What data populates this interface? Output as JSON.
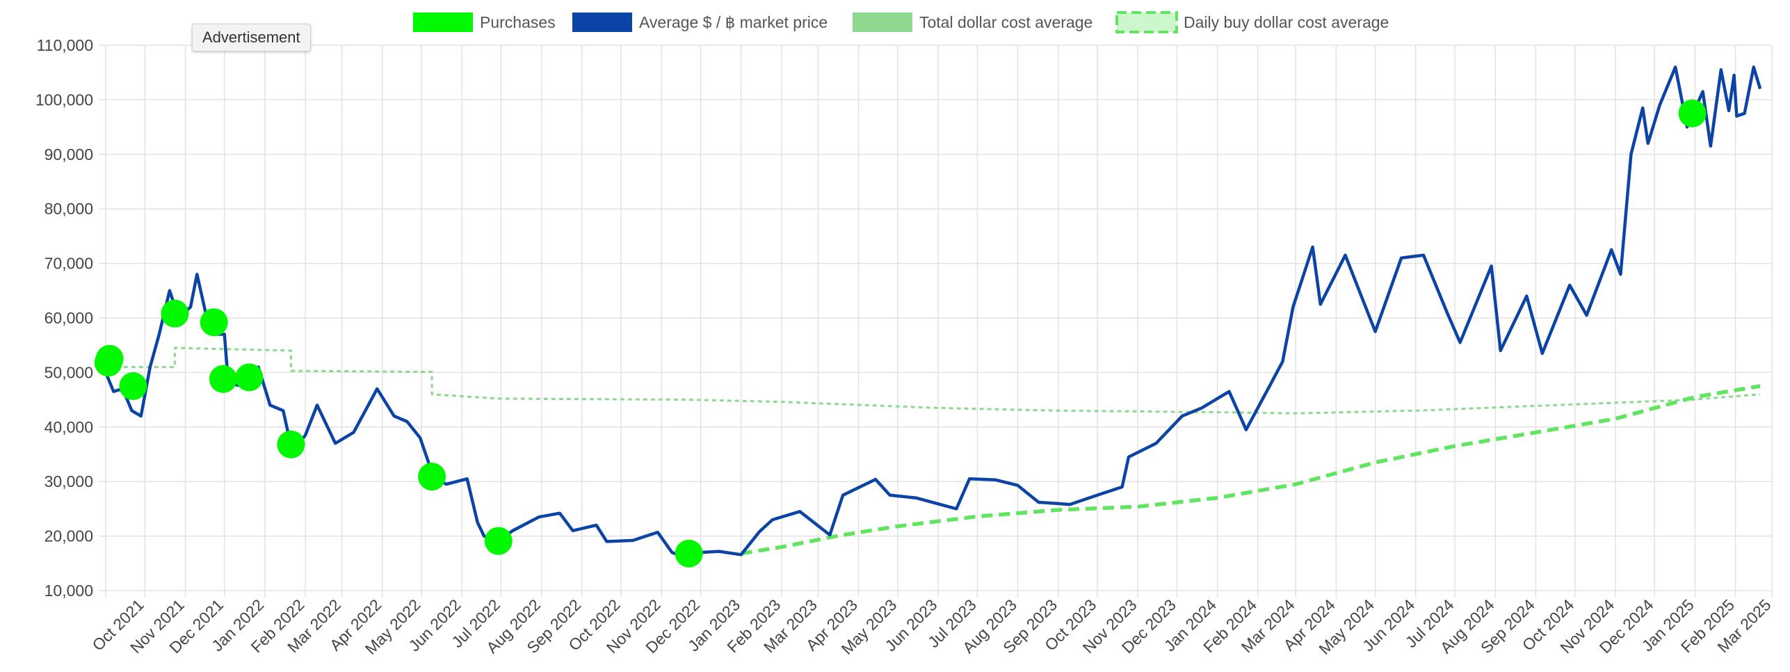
{
  "tooltip": {
    "label": "Advertisement"
  },
  "chart_data": {
    "type": "line",
    "legend_position": "top-center",
    "grid": true,
    "ylim": [
      10000,
      110000
    ],
    "y_ticks": [
      10000,
      20000,
      30000,
      40000,
      50000,
      60000,
      70000,
      80000,
      90000,
      100000,
      110000
    ],
    "y_tick_labels": [
      "10,000",
      "20,000",
      "30,000",
      "40,000",
      "50,000",
      "60,000",
      "70,000",
      "80,000",
      "90,000",
      "100,000",
      "110,000"
    ],
    "x_range": [
      "2021-09-01",
      "2025-03-01"
    ],
    "x_tick_labels": [
      "Oct 2021",
      "Nov 2021",
      "Dec 2021",
      "Jan 2022",
      "Feb 2022",
      "Mar 2022",
      "Apr 2022",
      "May 2022",
      "Jun 2022",
      "Jul 2022",
      "Aug 2022",
      "Sep 2022",
      "Oct 2022",
      "Nov 2022",
      "Dec 2022",
      "Jan 2023",
      "Feb 2023",
      "Mar 2023",
      "Apr 2023",
      "May 2023",
      "Jun 2023",
      "Jul 2023",
      "Aug 2023",
      "Sep 2023",
      "Oct 2023",
      "Nov 2023",
      "Dec 2023",
      "Jan 2024",
      "Feb 2024",
      "Mar 2024",
      "Apr 2024",
      "May 2024",
      "Jun 2024",
      "Jul 2024",
      "Aug 2024",
      "Sep 2024",
      "Oct 2024",
      "Nov 2024",
      "Dec 2024",
      "Jan 2025",
      "Feb 2025",
      "Mar 2025"
    ],
    "series": [
      {
        "name": "Purchases",
        "kind": "points",
        "color": "#00f900",
        "points": [
          {
            "x": "2021-09-04",
            "y": 52500
          },
          {
            "x": "2021-09-03",
            "y": 51800
          },
          {
            "x": "2021-09-22",
            "y": 47500
          },
          {
            "x": "2021-10-24",
            "y": 60800
          },
          {
            "x": "2021-11-23",
            "y": 59200
          },
          {
            "x": "2021-11-30",
            "y": 48800
          },
          {
            "x": "2021-12-20",
            "y": 49100
          },
          {
            "x": "2022-01-21",
            "y": 36800
          },
          {
            "x": "2022-05-09",
            "y": 30900
          },
          {
            "x": "2022-06-29",
            "y": 19100
          },
          {
            "x": "2022-11-22",
            "y": 16800
          },
          {
            "x": "2024-12-30",
            "y": 97500
          }
        ]
      },
      {
        "name": "Average $ / ฿ market price",
        "kind": "line",
        "color": "#0c44a6",
        "points": [
          {
            "x": "2021-09-01",
            "y": 50000
          },
          {
            "x": "2021-09-07",
            "y": 46500
          },
          {
            "x": "2021-09-14",
            "y": 47000
          },
          {
            "x": "2021-09-21",
            "y": 43000
          },
          {
            "x": "2021-09-28",
            "y": 42000
          },
          {
            "x": "2021-10-05",
            "y": 51000
          },
          {
            "x": "2021-10-12",
            "y": 57000
          },
          {
            "x": "2021-10-20",
            "y": 65000
          },
          {
            "x": "2021-10-27",
            "y": 60000
          },
          {
            "x": "2021-11-05",
            "y": 62000
          },
          {
            "x": "2021-11-10",
            "y": 68000
          },
          {
            "x": "2021-11-17",
            "y": 60500
          },
          {
            "x": "2021-11-24",
            "y": 57000
          },
          {
            "x": "2021-12-01",
            "y": 57000
          },
          {
            "x": "2021-12-04",
            "y": 48000
          },
          {
            "x": "2021-12-15",
            "y": 47500
          },
          {
            "x": "2021-12-27",
            "y": 51000
          },
          {
            "x": "2022-01-05",
            "y": 44000
          },
          {
            "x": "2022-01-15",
            "y": 43000
          },
          {
            "x": "2022-01-22",
            "y": 35500
          },
          {
            "x": "2022-02-01",
            "y": 38500
          },
          {
            "x": "2022-02-10",
            "y": 44000
          },
          {
            "x": "2022-02-24",
            "y": 37000
          },
          {
            "x": "2022-03-10",
            "y": 39000
          },
          {
            "x": "2022-03-28",
            "y": 47000
          },
          {
            "x": "2022-04-10",
            "y": 42000
          },
          {
            "x": "2022-04-20",
            "y": 41000
          },
          {
            "x": "2022-04-30",
            "y": 38000
          },
          {
            "x": "2022-05-10",
            "y": 31000
          },
          {
            "x": "2022-05-20",
            "y": 29500
          },
          {
            "x": "2022-06-05",
            "y": 30500
          },
          {
            "x": "2022-06-13",
            "y": 22500
          },
          {
            "x": "2022-06-18",
            "y": 20000
          },
          {
            "x": "2022-07-01",
            "y": 19500
          },
          {
            "x": "2022-07-10",
            "y": 21000
          },
          {
            "x": "2022-07-30",
            "y": 23500
          },
          {
            "x": "2022-08-15",
            "y": 24200
          },
          {
            "x": "2022-08-25",
            "y": 21000
          },
          {
            "x": "2022-09-12",
            "y": 22000
          },
          {
            "x": "2022-09-20",
            "y": 19000
          },
          {
            "x": "2022-10-10",
            "y": 19200
          },
          {
            "x": "2022-10-29",
            "y": 20700
          },
          {
            "x": "2022-11-09",
            "y": 17000
          },
          {
            "x": "2022-11-20",
            "y": 16000
          },
          {
            "x": "2022-12-01",
            "y": 17000
          },
          {
            "x": "2022-12-15",
            "y": 17200
          },
          {
            "x": "2023-01-01",
            "y": 16600
          },
          {
            "x": "2023-01-15",
            "y": 20800
          },
          {
            "x": "2023-01-25",
            "y": 23000
          },
          {
            "x": "2023-02-15",
            "y": 24500
          },
          {
            "x": "2023-03-10",
            "y": 20200
          },
          {
            "x": "2023-03-20",
            "y": 27500
          },
          {
            "x": "2023-04-14",
            "y": 30400
          },
          {
            "x": "2023-04-25",
            "y": 27500
          },
          {
            "x": "2023-05-15",
            "y": 27000
          },
          {
            "x": "2023-06-15",
            "y": 25000
          },
          {
            "x": "2023-06-25",
            "y": 30500
          },
          {
            "x": "2023-07-15",
            "y": 30300
          },
          {
            "x": "2023-08-01",
            "y": 29300
          },
          {
            "x": "2023-08-17",
            "y": 26200
          },
          {
            "x": "2023-09-10",
            "y": 25800
          },
          {
            "x": "2023-10-01",
            "y": 27500
          },
          {
            "x": "2023-10-20",
            "y": 29000
          },
          {
            "x": "2023-10-25",
            "y": 34500
          },
          {
            "x": "2023-11-15",
            "y": 37000
          },
          {
            "x": "2023-12-05",
            "y": 42000
          },
          {
            "x": "2023-12-20",
            "y": 43500
          },
          {
            "x": "2024-01-10",
            "y": 46500
          },
          {
            "x": "2024-01-23",
            "y": 39500
          },
          {
            "x": "2024-02-10",
            "y": 47500
          },
          {
            "x": "2024-02-20",
            "y": 52000
          },
          {
            "x": "2024-02-28",
            "y": 62000
          },
          {
            "x": "2024-03-14",
            "y": 73000
          },
          {
            "x": "2024-03-20",
            "y": 62500
          },
          {
            "x": "2024-04-08",
            "y": 71500
          },
          {
            "x": "2024-05-01",
            "y": 57500
          },
          {
            "x": "2024-05-21",
            "y": 71000
          },
          {
            "x": "2024-06-07",
            "y": 71500
          },
          {
            "x": "2024-06-25",
            "y": 61000
          },
          {
            "x": "2024-07-05",
            "y": 55500
          },
          {
            "x": "2024-07-29",
            "y": 69500
          },
          {
            "x": "2024-08-05",
            "y": 54000
          },
          {
            "x": "2024-08-25",
            "y": 64000
          },
          {
            "x": "2024-09-06",
            "y": 53500
          },
          {
            "x": "2024-09-27",
            "y": 66000
          },
          {
            "x": "2024-10-10",
            "y": 60500
          },
          {
            "x": "2024-10-29",
            "y": 72500
          },
          {
            "x": "2024-11-05",
            "y": 68000
          },
          {
            "x": "2024-11-13",
            "y": 90000
          },
          {
            "x": "2024-11-22",
            "y": 98500
          },
          {
            "x": "2024-11-26",
            "y": 92000
          },
          {
            "x": "2024-12-05",
            "y": 99000
          },
          {
            "x": "2024-12-17",
            "y": 106000
          },
          {
            "x": "2024-12-26",
            "y": 95000
          },
          {
            "x": "2025-01-07",
            "y": 101500
          },
          {
            "x": "2025-01-13",
            "y": 91500
          },
          {
            "x": "2025-01-21",
            "y": 105500
          },
          {
            "x": "2025-01-27",
            "y": 98000
          },
          {
            "x": "2025-01-31",
            "y": 104500
          },
          {
            "x": "2025-02-02",
            "y": 97000
          },
          {
            "x": "2025-02-08",
            "y": 97500
          },
          {
            "x": "2025-02-15",
            "y": 106000
          },
          {
            "x": "2025-02-20",
            "y": 102000
          }
        ]
      },
      {
        "name": "Total dollar cost average",
        "kind": "line",
        "dash": "fine",
        "color": "#8fd88f",
        "points": [
          {
            "x": "2021-09-03",
            "y": 51000
          },
          {
            "x": "2021-10-24",
            "y": 51000
          },
          {
            "x": "2021-10-24",
            "y": 54500
          },
          {
            "x": "2022-01-21",
            "y": 54000
          },
          {
            "x": "2022-01-21",
            "y": 50300
          },
          {
            "x": "2022-05-09",
            "y": 50100
          },
          {
            "x": "2022-05-09",
            "y": 46000
          },
          {
            "x": "2022-06-29",
            "y": 45200
          },
          {
            "x": "2022-11-22",
            "y": 45000
          },
          {
            "x": "2023-02-01",
            "y": 44600
          },
          {
            "x": "2023-06-01",
            "y": 43500
          },
          {
            "x": "2023-09-01",
            "y": 43000
          },
          {
            "x": "2024-01-01",
            "y": 42700
          },
          {
            "x": "2024-03-01",
            "y": 42500
          },
          {
            "x": "2024-06-01",
            "y": 43000
          },
          {
            "x": "2024-12-30",
            "y": 45000
          },
          {
            "x": "2025-02-20",
            "y": 46000
          }
        ]
      },
      {
        "name": "Daily buy dollar cost average",
        "kind": "line",
        "dash": "thick",
        "color": "#5fe55f",
        "points": [
          {
            "x": "2023-01-01",
            "y": 16800
          },
          {
            "x": "2023-02-01",
            "y": 18000
          },
          {
            "x": "2023-03-15",
            "y": 20000
          },
          {
            "x": "2023-05-01",
            "y": 21800
          },
          {
            "x": "2023-07-01",
            "y": 23600
          },
          {
            "x": "2023-09-01",
            "y": 24800
          },
          {
            "x": "2023-11-01",
            "y": 25400
          },
          {
            "x": "2024-01-01",
            "y": 27000
          },
          {
            "x": "2024-03-01",
            "y": 29500
          },
          {
            "x": "2024-05-01",
            "y": 33500
          },
          {
            "x": "2024-07-01",
            "y": 36500
          },
          {
            "x": "2024-09-01",
            "y": 39000
          },
          {
            "x": "2024-11-01",
            "y": 41500
          },
          {
            "x": "2025-01-01",
            "y": 45500
          },
          {
            "x": "2025-02-20",
            "y": 47500
          }
        ]
      }
    ]
  }
}
